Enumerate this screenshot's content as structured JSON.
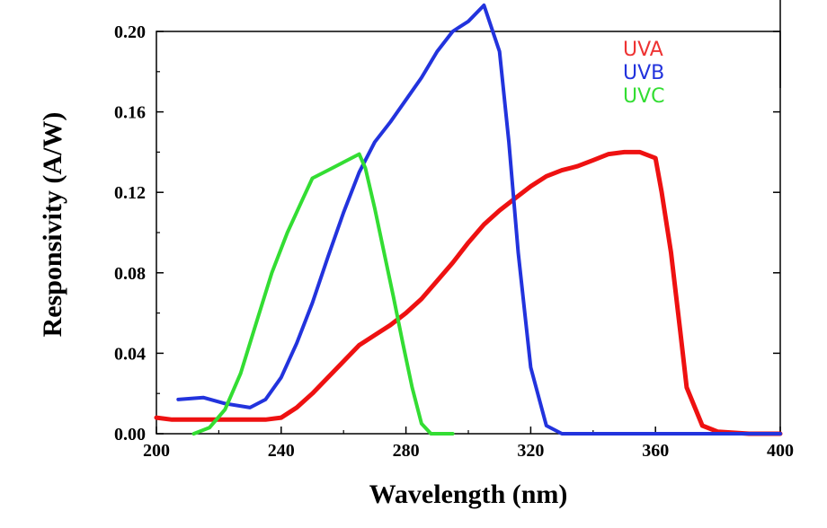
{
  "chart_data": {
    "type": "line",
    "xlabel": "Wavelength (nm)",
    "ylabel": "Responsivity (A/W)",
    "xlim": [
      200,
      400
    ],
    "ylim": [
      0,
      0.2
    ],
    "x_ticks": [
      "200",
      "240",
      "280",
      "320",
      "360",
      "400"
    ],
    "y_ticks": [
      "0.00",
      "0.04",
      "0.08",
      "0.12",
      "0.16",
      "0.20"
    ],
    "legend_position": "top-right",
    "series": [
      {
        "name": "UVA",
        "color": "#ee1111",
        "points": [
          [
            200,
            0.008
          ],
          [
            205,
            0.007
          ],
          [
            215,
            0.007
          ],
          [
            225,
            0.007
          ],
          [
            235,
            0.007
          ],
          [
            240,
            0.008
          ],
          [
            245,
            0.013
          ],
          [
            250,
            0.02
          ],
          [
            255,
            0.028
          ],
          [
            260,
            0.036
          ],
          [
            265,
            0.044
          ],
          [
            270,
            0.049
          ],
          [
            275,
            0.054
          ],
          [
            280,
            0.06
          ],
          [
            285,
            0.067
          ],
          [
            290,
            0.076
          ],
          [
            295,
            0.085
          ],
          [
            300,
            0.095
          ],
          [
            305,
            0.104
          ],
          [
            310,
            0.111
          ],
          [
            315,
            0.117
          ],
          [
            320,
            0.123
          ],
          [
            325,
            0.128
          ],
          [
            330,
            0.131
          ],
          [
            335,
            0.133
          ],
          [
            340,
            0.136
          ],
          [
            345,
            0.139
          ],
          [
            350,
            0.14
          ],
          [
            355,
            0.14
          ],
          [
            360,
            0.137
          ],
          [
            362,
            0.12
          ],
          [
            365,
            0.09
          ],
          [
            368,
            0.05
          ],
          [
            370,
            0.023
          ],
          [
            375,
            0.004
          ],
          [
            380,
            0.001
          ],
          [
            390,
            0.0
          ],
          [
            400,
            0.0
          ]
        ]
      },
      {
        "name": "UVB",
        "color": "#2233dd",
        "points": [
          [
            207,
            0.017
          ],
          [
            215,
            0.018
          ],
          [
            222,
            0.015
          ],
          [
            230,
            0.013
          ],
          [
            235,
            0.017
          ],
          [
            240,
            0.028
          ],
          [
            245,
            0.045
          ],
          [
            250,
            0.065
          ],
          [
            255,
            0.088
          ],
          [
            260,
            0.11
          ],
          [
            265,
            0.13
          ],
          [
            270,
            0.145
          ],
          [
            275,
            0.155
          ],
          [
            280,
            0.166
          ],
          [
            285,
            0.177
          ],
          [
            290,
            0.19
          ],
          [
            295,
            0.2
          ],
          [
            300,
            0.205
          ],
          [
            305,
            0.213
          ],
          [
            310,
            0.19
          ],
          [
            313,
            0.145
          ],
          [
            316,
            0.09
          ],
          [
            320,
            0.033
          ],
          [
            325,
            0.004
          ],
          [
            330,
            0.0
          ],
          [
            340,
            0.0
          ],
          [
            400,
            0.0
          ]
        ]
      },
      {
        "name": "UVC",
        "color": "#33dd33",
        "points": [
          [
            212,
            0.0
          ],
          [
            217,
            0.003
          ],
          [
            222,
            0.012
          ],
          [
            227,
            0.03
          ],
          [
            232,
            0.055
          ],
          [
            237,
            0.08
          ],
          [
            242,
            0.1
          ],
          [
            247,
            0.117
          ],
          [
            250,
            0.127
          ],
          [
            255,
            0.131
          ],
          [
            260,
            0.135
          ],
          [
            265,
            0.139
          ],
          [
            267,
            0.132
          ],
          [
            270,
            0.112
          ],
          [
            273,
            0.09
          ],
          [
            276,
            0.068
          ],
          [
            279,
            0.045
          ],
          [
            282,
            0.023
          ],
          [
            285,
            0.005
          ],
          [
            288,
            0.0
          ],
          [
            295,
            0.0
          ]
        ]
      }
    ]
  }
}
